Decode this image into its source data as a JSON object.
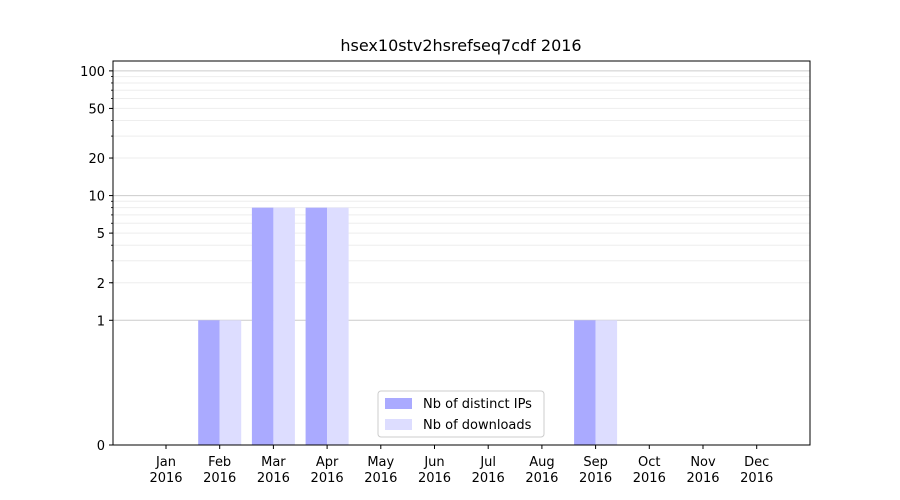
{
  "chart_data": {
    "type": "bar",
    "title": "hsex10stv2hsrefseq7cdf 2016",
    "xlabel": "",
    "ylabel": "",
    "y_scale": "symlog",
    "ylim": [
      0,
      120
    ],
    "y_ticks": [
      0,
      1,
      2,
      5,
      10,
      20,
      50,
      100
    ],
    "categories": [
      [
        "Jan",
        "2016"
      ],
      [
        "Feb",
        "2016"
      ],
      [
        "Mar",
        "2016"
      ],
      [
        "Apr",
        "2016"
      ],
      [
        "May",
        "2016"
      ],
      [
        "Jun",
        "2016"
      ],
      [
        "Jul",
        "2016"
      ],
      [
        "Aug",
        "2016"
      ],
      [
        "Sep",
        "2016"
      ],
      [
        "Oct",
        "2016"
      ],
      [
        "Nov",
        "2016"
      ],
      [
        "Dec",
        "2016"
      ]
    ],
    "series": [
      {
        "name": "Nb of distinct IPs",
        "color": "#aaaaff",
        "values": [
          0,
          1,
          8,
          8,
          0,
          0,
          0,
          0,
          1,
          0,
          0,
          0
        ]
      },
      {
        "name": "Nb of downloads",
        "color": "#ddddff",
        "values": [
          0,
          1,
          8,
          8,
          0,
          0,
          0,
          0,
          1,
          0,
          0,
          0
        ]
      }
    ],
    "grid": true,
    "legend_position": "lower-center"
  }
}
